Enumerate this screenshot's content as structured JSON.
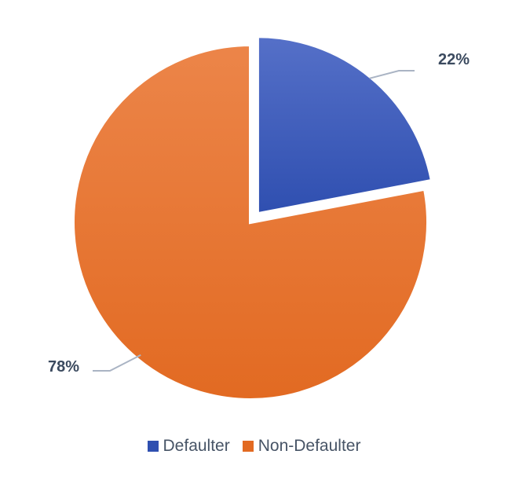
{
  "chart_data": {
    "type": "pie",
    "title": "",
    "series": [
      {
        "name": "Defaulter",
        "value": 22,
        "label": "22%",
        "color_top": "#5570c8",
        "color_bottom": "#2f4fb0",
        "exploded": true
      },
      {
        "name": "Non-Defaulter",
        "value": 78,
        "label": "78%",
        "color_top": "#ec8549",
        "color_bottom": "#e26a22",
        "exploded": false
      }
    ],
    "legend_position": "bottom"
  },
  "colors": {
    "label_text": "#3b4a5f",
    "leader_line": "#aab4c4",
    "legend_text": "#475466"
  }
}
